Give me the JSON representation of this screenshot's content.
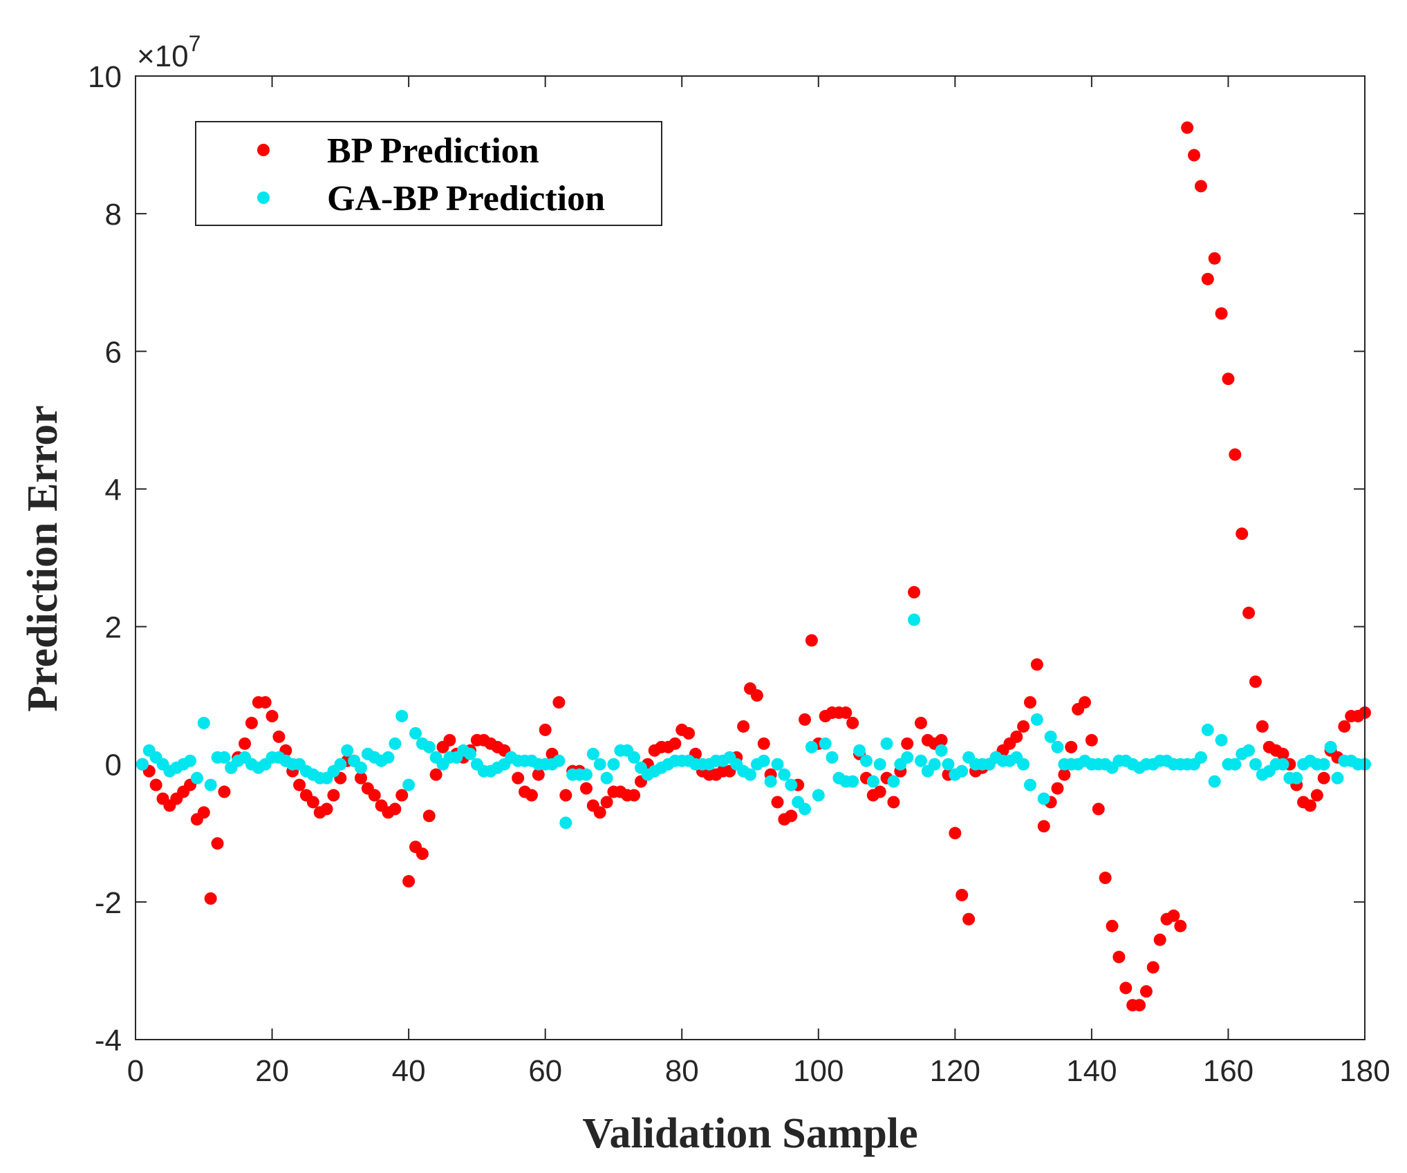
{
  "chart_data": {
    "type": "scatter",
    "title": "",
    "xlabel": "Validation Sample",
    "ylabel": "Prediction Error",
    "xlim": [
      0,
      180
    ],
    "ylim": [
      -4,
      10
    ],
    "y_scale_exponent": "7",
    "y_scale_prefix": "×10",
    "xticks": [
      0,
      20,
      40,
      60,
      80,
      100,
      120,
      140,
      160,
      180
    ],
    "xtick_labels": [
      "0",
      "20",
      "40",
      "60",
      "80",
      "100",
      "120",
      "140",
      "160",
      "180"
    ],
    "yticks": [
      -4,
      -2,
      0,
      2,
      4,
      6,
      8,
      10
    ],
    "ytick_labels": [
      "-4",
      "-2",
      "0",
      "2",
      "4",
      "6",
      "8",
      "10"
    ],
    "legend_position": "top-left",
    "x": [
      1,
      2,
      3,
      4,
      5,
      6,
      7,
      8,
      9,
      10,
      11,
      12,
      13,
      14,
      15,
      16,
      17,
      18,
      19,
      20,
      21,
      22,
      23,
      24,
      25,
      26,
      27,
      28,
      29,
      30,
      31,
      32,
      33,
      34,
      35,
      36,
      37,
      38,
      39,
      40,
      41,
      42,
      43,
      44,
      45,
      46,
      47,
      48,
      49,
      50,
      51,
      52,
      53,
      54,
      55,
      56,
      57,
      58,
      59,
      60,
      61,
      62,
      63,
      64,
      65,
      66,
      67,
      68,
      69,
      70,
      71,
      72,
      73,
      74,
      75,
      76,
      77,
      78,
      79,
      80,
      81,
      82,
      83,
      84,
      85,
      86,
      87,
      88,
      89,
      90,
      91,
      92,
      93,
      94,
      95,
      96,
      97,
      98,
      99,
      100,
      101,
      102,
      103,
      104,
      105,
      106,
      107,
      108,
      109,
      110,
      111,
      112,
      113,
      114,
      115,
      116,
      117,
      118,
      119,
      120,
      121,
      122,
      123,
      124,
      125,
      126,
      127,
      128,
      129,
      130,
      131,
      132,
      133,
      134,
      135,
      136,
      137,
      138,
      139,
      140,
      141,
      142,
      143,
      144,
      145,
      146,
      147,
      148,
      149,
      150,
      151,
      152,
      153,
      154,
      155,
      156,
      157,
      158,
      159,
      160,
      161,
      162,
      163,
      164,
      165,
      166,
      167,
      168,
      169,
      170,
      171,
      172,
      173,
      174,
      175,
      176,
      177,
      178,
      179,
      180
    ],
    "series": [
      {
        "name": "BP Prediction",
        "color": "#ff0000",
        "values": [
          0,
          -0.1,
          -0.3,
          -0.5,
          -0.6,
          -0.5,
          -0.4,
          -0.3,
          -0.8,
          -0.7,
          -1.95,
          -1.15,
          -0.4,
          -0.05,
          0.1,
          0.3,
          0.6,
          0.9,
          0.9,
          0.7,
          0.4,
          0.2,
          -0.1,
          -0.3,
          -0.45,
          -0.55,
          -0.7,
          -0.65,
          -0.45,
          -0.2,
          0.05,
          0.05,
          -0.2,
          -0.35,
          -0.45,
          -0.6,
          -0.7,
          -0.65,
          -0.45,
          -1.7,
          -1.2,
          -1.3,
          -0.75,
          -0.15,
          0.25,
          0.35,
          0.15,
          0.1,
          0.2,
          0.35,
          0.35,
          0.3,
          0.25,
          0.2,
          0.1,
          -0.2,
          -0.4,
          -0.45,
          -0.15,
          0.5,
          0.15,
          0.9,
          -0.45,
          -0.1,
          -0.1,
          -0.35,
          -0.6,
          -0.7,
          -0.55,
          -0.4,
          -0.4,
          -0.45,
          -0.45,
          -0.25,
          0,
          0.2,
          0.25,
          0.25,
          0.3,
          0.5,
          0.45,
          0.15,
          -0.1,
          -0.15,
          -0.15,
          -0.1,
          -0.1,
          0.1,
          0.55,
          1.1,
          1.0,
          0.3,
          -0.15,
          -0.55,
          -0.8,
          -0.75,
          -0.3,
          0.65,
          1.8,
          0.3,
          0.7,
          0.75,
          0.75,
          0.75,
          0.6,
          0.15,
          -0.2,
          -0.45,
          -0.4,
          -0.2,
          -0.55,
          -0.1,
          0.3,
          2.5,
          0.6,
          0.35,
          0.3,
          0.35,
          -0.15,
          -1.0,
          -1.9,
          -2.25,
          -0.1,
          -0.05,
          0,
          0.1,
          0.2,
          0.3,
          0.4,
          0.55,
          0.9,
          1.45,
          -0.9,
          -0.55,
          -0.35,
          -0.15,
          0.25,
          0.8,
          0.9,
          0.35,
          -0.65,
          -1.65,
          -2.35,
          -2.8,
          -3.25,
          -3.5,
          -3.5,
          -3.3,
          -2.95,
          -2.55,
          -2.25,
          -2.2,
          -2.35,
          9.25,
          8.85,
          8.4,
          7.05,
          7.35,
          6.55,
          5.6,
          4.5,
          3.35,
          2.2,
          1.2,
          0.55,
          0.25,
          0.2,
          0.15,
          0,
          -0.3,
          -0.55,
          -0.6,
          -0.45,
          -0.2,
          0.2,
          0.1,
          0.55,
          0.7,
          0.7,
          0.75
        ]
      },
      {
        "name": "GA-BP Prediction",
        "color": "#00e5ee",
        "values": [
          0,
          0.2,
          0.1,
          0,
          -0.1,
          -0.05,
          0,
          0.05,
          -0.2,
          0.6,
          -0.3,
          0.1,
          0.1,
          -0.05,
          0.05,
          0.1,
          0,
          -0.05,
          0,
          0.1,
          0.1,
          0.05,
          0,
          0,
          -0.1,
          -0.15,
          -0.2,
          -0.2,
          -0.1,
          0,
          0.2,
          0.05,
          -0.05,
          0.15,
          0.1,
          0.05,
          0.1,
          0.3,
          0.7,
          -0.3,
          0.45,
          0.3,
          0.25,
          0.1,
          0,
          0.1,
          0.1,
          0.2,
          0.15,
          0,
          -0.1,
          -0.1,
          -0.05,
          0,
          0.1,
          0.05,
          0.05,
          0.05,
          0,
          0,
          0,
          0.05,
          -0.85,
          -0.15,
          -0.15,
          -0.15,
          0.15,
          0,
          -0.2,
          0,
          0.2,
          0.2,
          0.1,
          -0.05,
          -0.15,
          -0.1,
          -0.05,
          0,
          0.05,
          0.05,
          0.05,
          0,
          0,
          0,
          0.05,
          0.05,
          0.1,
          0,
          -0.1,
          -0.15,
          0,
          0.05,
          -0.25,
          0,
          -0.15,
          -0.3,
          -0.55,
          -0.65,
          0.25,
          -0.45,
          0.3,
          0.1,
          -0.2,
          -0.25,
          -0.25,
          0.2,
          0.05,
          -0.25,
          0,
          0.3,
          -0.25,
          0,
          0.1,
          2.1,
          0.05,
          -0.1,
          0,
          0.2,
          0,
          -0.15,
          -0.1,
          0.1,
          0,
          0,
          0,
          0.1,
          0.05,
          0.05,
          0.1,
          0,
          -0.3,
          0.65,
          -0.5,
          0.4,
          0.25,
          0,
          0,
          0,
          0.05,
          0,
          0,
          0,
          -0.05,
          0.05,
          0.05,
          0,
          -0.05,
          0,
          0,
          0.05,
          0.05,
          0,
          0,
          0,
          0,
          0.1,
          0.5,
          -0.25,
          0.35,
          0,
          0,
          0.15,
          0.2,
          0,
          -0.15,
          -0.1,
          0,
          0,
          -0.2,
          -0.2,
          0,
          0.05,
          0,
          0,
          0.25,
          -0.2,
          0.05,
          0.05,
          0,
          0
        ]
      }
    ]
  }
}
